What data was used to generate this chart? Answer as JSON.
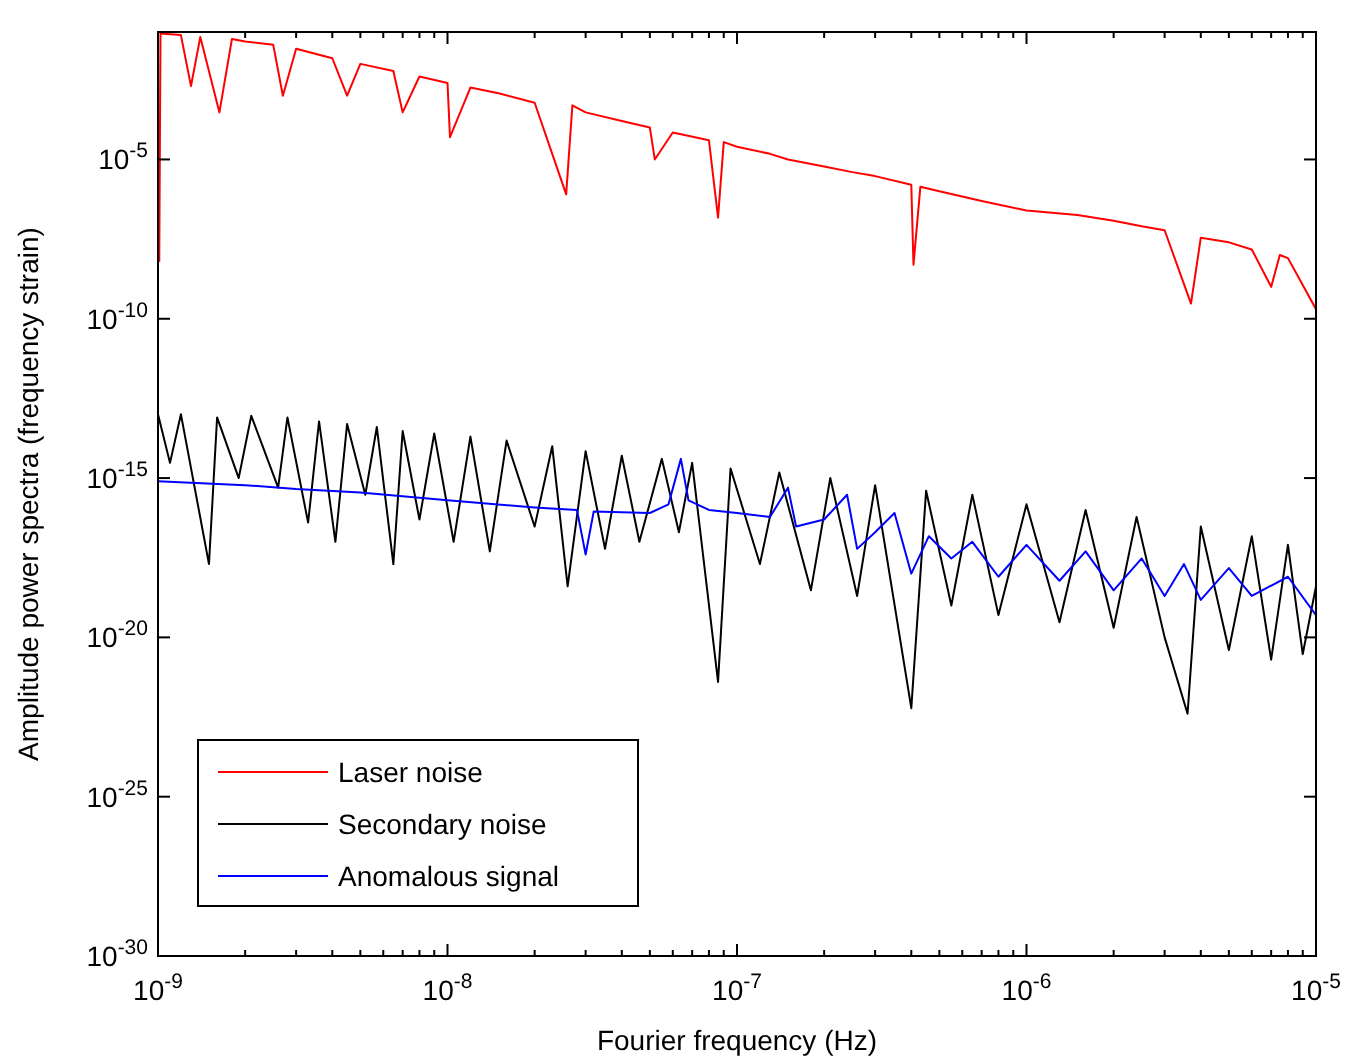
{
  "chart_data": {
    "type": "line",
    "xlabel": "Fourier frequency (Hz)",
    "ylabel": "Amplitude power spectra (frequency strain)",
    "log": "xy",
    "grid": false,
    "legend": "bottom left",
    "line_style": "solid",
    "xlim": [
      1e-09,
      1e-05
    ],
    "ylim": [
      1e-30,
      0.1
    ],
    "xticks": [
      {
        "value": 1e-09,
        "label": "10$^{-9}$"
      },
      {
        "value": 2e-09,
        "label": null
      },
      {
        "value": 3e-09,
        "label": null
      },
      {
        "value": 4e-09,
        "label": null
      },
      {
        "value": 5e-09,
        "label": null
      },
      {
        "value": 6e-09,
        "label": null
      },
      {
        "value": 7e-09,
        "label": null
      },
      {
        "value": 8e-09,
        "label": null
      },
      {
        "value": 9e-09,
        "label": null
      },
      {
        "value": 1e-08,
        "label": "10$^{-8}$"
      },
      {
        "value": 2e-08,
        "label": null
      },
      {
        "value": 3e-08,
        "label": null
      },
      {
        "value": 4e-08,
        "label": null
      },
      {
        "value": 5e-08,
        "label": null
      },
      {
        "value": 6e-08,
        "label": null
      },
      {
        "value": 7e-08,
        "label": null
      },
      {
        "value": 8e-08,
        "label": null
      },
      {
        "value": 9e-08,
        "label": null
      },
      {
        "value": 1e-07,
        "label": "10$^{-7}$"
      },
      {
        "value": 2e-07,
        "label": null
      },
      {
        "value": 3e-07,
        "label": null
      },
      {
        "value": 4e-07,
        "label": null
      },
      {
        "value": 5e-07,
        "label": null
      },
      {
        "value": 6e-07,
        "label": null
      },
      {
        "value": 7e-07,
        "label": null
      },
      {
        "value": 8e-07,
        "label": null
      },
      {
        "value": 9e-07,
        "label": null
      },
      {
        "value": 1e-06,
        "label": "10$^{-6}$"
      },
      {
        "value": 2e-06,
        "label": null
      },
      {
        "value": 3e-06,
        "label": null
      },
      {
        "value": 4e-06,
        "label": null
      },
      {
        "value": 5e-06,
        "label": null
      },
      {
        "value": 6e-06,
        "label": null
      },
      {
        "value": 7e-06,
        "label": null
      },
      {
        "value": 8e-06,
        "label": null
      },
      {
        "value": 9e-06,
        "label": null
      },
      {
        "value": 1e-05,
        "label": "10$^{-5}$"
      }
    ],
    "yticks": [
      {
        "value": 1e-30,
        "label": "10$^{-30}$"
      },
      {
        "value": 1e-25,
        "label": "10$^{-25}$"
      },
      {
        "value": 1e-20,
        "label": "10$^{-20}$"
      },
      {
        "value": 1e-15,
        "label": "10$^{-15}$"
      },
      {
        "value": 1e-10,
        "label": "10$^{-10}$"
      },
      {
        "value": 1e-05,
        "label": "10$^{-5}$"
      }
    ],
    "series": [
      {
        "name": "Laser noise",
        "color": "#ff0000",
        "x": [
          1.01e-09,
          1.02e-09,
          1.2e-09,
          1.3e-09,
          1.4e-09,
          1.63e-09,
          1.8e-09,
          2e-09,
          2.5e-09,
          2.7e-09,
          3e-09,
          4e-09,
          4.5e-09,
          5e-09,
          6.5e-09,
          7e-09,
          8e-09,
          1e-08,
          1.02e-08,
          1.2e-08,
          1.5e-08,
          2e-08,
          2.57e-08,
          2.7e-08,
          3e-08,
          4e-08,
          5e-08,
          5.2e-08,
          6e-08,
          8e-08,
          8.6e-08,
          9e-08,
          1e-07,
          1.3e-07,
          1.5e-07,
          2e-07,
          2.5e-07,
          3e-07,
          4e-07,
          4.07e-07,
          4.3e-07,
          5e-07,
          7e-07,
          1e-06,
          1.5e-06,
          2e-06,
          2.5e-06,
          3e-06,
          3.7e-06,
          4e-06,
          5e-06,
          6e-06,
          7e-06,
          7.5e-06,
          8e-06,
          1e-05
        ],
        "values": [
          6e-09,
          0.09,
          0.08,
          0.002,
          0.07,
          0.0003,
          0.06,
          0.05,
          0.04,
          0.001,
          0.03,
          0.015,
          0.001,
          0.01,
          0.006,
          0.0003,
          0.004,
          0.0025,
          5e-05,
          0.0018,
          0.0012,
          0.0006,
          8e-07,
          0.0005,
          0.0003,
          0.00016,
          0.0001,
          1e-05,
          7e-05,
          4e-05,
          1.5e-07,
          3.5e-05,
          2.5e-05,
          1.5e-05,
          1e-05,
          6e-06,
          4e-06,
          3e-06,
          1.6e-06,
          5e-09,
          1.4e-06,
          1e-06,
          5e-07,
          2.5e-07,
          1.8e-07,
          1.2e-07,
          8e-08,
          6e-08,
          3e-10,
          3.5e-08,
          2.5e-08,
          1.5e-08,
          1e-09,
          1e-08,
          8e-09,
          2e-10
        ]
      },
      {
        "name": "Secondary noise",
        "color": "#000000",
        "x": [
          1e-09,
          1.1e-09,
          1.2e-09,
          1.5e-09,
          1.6e-09,
          1.9e-09,
          2.1e-09,
          2.6e-09,
          2.8e-09,
          3.3e-09,
          3.6e-09,
          4.1e-09,
          4.5e-09,
          5.2e-09,
          5.7e-09,
          6.5e-09,
          7e-09,
          8e-09,
          9e-09,
          1.05e-08,
          1.2e-08,
          1.4e-08,
          1.6e-08,
          2e-08,
          2.3e-08,
          2.6e-08,
          3e-08,
          3.5e-08,
          4e-08,
          4.6e-08,
          5.5e-08,
          6.3e-08,
          7e-08,
          8.6e-08,
          9.5e-08,
          1.2e-07,
          1.4e-07,
          1.8e-07,
          2.1e-07,
          2.6e-07,
          3e-07,
          4e-07,
          4.5e-07,
          5.5e-07,
          6.5e-07,
          8e-07,
          1e-06,
          1.3e-06,
          1.6e-06,
          2e-06,
          2.4e-06,
          3e-06,
          3.6e-06,
          4e-06,
          5e-06,
          6e-06,
          7e-06,
          8e-06,
          9e-06,
          1e-05
        ],
        "values": [
          1e-13,
          3e-15,
          1e-13,
          2e-18,
          8e-14,
          1e-15,
          9e-14,
          5e-16,
          8e-14,
          4e-17,
          6e-14,
          1e-17,
          5e-14,
          3e-16,
          4e-14,
          2e-18,
          3e-14,
          5e-17,
          2.5e-14,
          1e-17,
          2e-14,
          5e-18,
          1.5e-14,
          3e-17,
          1e-14,
          4e-19,
          7e-15,
          6e-18,
          5e-15,
          1e-17,
          4e-15,
          2e-17,
          3e-15,
          4e-22,
          2e-15,
          2e-18,
          1.5e-15,
          3e-19,
          1e-15,
          2e-19,
          6e-16,
          6e-23,
          4e-16,
          1e-19,
          3e-16,
          5e-20,
          1.5e-16,
          3e-20,
          1e-16,
          2e-20,
          6e-17,
          1e-20,
          4e-23,
          3e-17,
          4e-21,
          1.5e-17,
          2e-21,
          8e-18,
          3e-21,
          4e-19
        ]
      },
      {
        "name": "Anomalous signal",
        "color": "#0000ff",
        "x": [
          1e-09,
          2e-09,
          3e-09,
          5e-09,
          1e-08,
          2e-08,
          2.8e-08,
          3e-08,
          3.2e-08,
          5e-08,
          5.8e-08,
          6.4e-08,
          6.8e-08,
          8e-08,
          1e-07,
          1.3e-07,
          1.5e-07,
          1.6e-07,
          2e-07,
          2.4e-07,
          2.6e-07,
          3e-07,
          3.5e-07,
          4e-07,
          4.6e-07,
          5.5e-07,
          6.5e-07,
          8e-07,
          1e-06,
          1.3e-06,
          1.6e-06,
          2e-06,
          2.5e-06,
          3e-06,
          3.5e-06,
          4e-06,
          5e-06,
          6e-06,
          8e-06,
          1e-05
        ],
        "values": [
          8e-16,
          6e-16,
          4.5e-16,
          3.5e-16,
          2e-16,
          1.2e-16,
          1e-16,
          4e-18,
          9e-17,
          8e-17,
          1.5e-16,
          4e-15,
          2e-16,
          1e-16,
          8e-17,
          6e-17,
          5e-16,
          3e-17,
          5e-17,
          3e-16,
          6e-18,
          2e-17,
          8e-17,
          1e-18,
          1.5e-17,
          3e-18,
          1e-17,
          8e-19,
          8e-18,
          6e-19,
          5e-18,
          3e-19,
          3e-18,
          2e-19,
          2e-18,
          1.5e-19,
          1.5e-18,
          2e-19,
          8e-19,
          5e-20
        ]
      }
    ]
  }
}
